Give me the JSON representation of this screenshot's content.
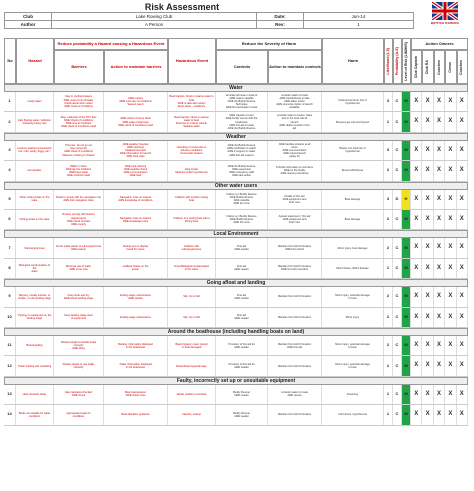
{
  "title": "Risk Assessment",
  "brand": {
    "wordmark": "BRITISH ROWING",
    "logo_icon": "union-flag-oars-icon"
  },
  "meta": {
    "club_label": "Club",
    "club_value": "Lake Rowing Club",
    "date_label": "Date:",
    "date_value": "Jun-14",
    "author_label": "Author",
    "author_value": "A Person",
    "rev_label": "Rev:",
    "rev_value": "1"
  },
  "headers": {
    "no": "No",
    "hazard": "Hazard",
    "group_prob": "Reduce probability a Hazard causing a Hazardous Event",
    "barriers": "Barriers",
    "action_barriers": "Action to maintain barriers",
    "hazardous_event": "Hazardous Event",
    "group_sev": "Reduce the Severity of Harm",
    "controls": "Controls",
    "action_controls": "Action to maintain controls",
    "harm": "Harm",
    "likelihood": "Likelihood (1-5)",
    "probability": "Probability (A-E)",
    "level": "Level of Risk (L/M/H/S)",
    "action_owners": "Action Owners",
    "owners": [
      "Club Captain",
      "Club RA",
      "Coaches",
      "Crews",
      "Coaches"
    ]
  },
  "colors": {
    "green": "#1fa447",
    "yellow": "#f2e11a",
    "red": "#c00000"
  },
  "sections": [
    {
      "title": "Water",
      "rows": [
        {
          "no": "1",
          "hazard": "cough water",
          "barriers": "Stay in confined waters\nAWE must come off water\nCheck alerts when water\nAWE check of conditions",
          "action_b": "AWE notices\nAWE summary of conditions\nSeason report",
          "event": "Boat Capsize, flood or swamp water to boat\nAWE to take alert action\nEnter water - conditions",
          "controls": "simulate all boats in boat of\nAWE rowers capable\nAWE the Buddy Rescue\nTechnique\nAWE first aid leader to boat",
          "action_c": "consider water to boats\nAWE transfer/tests to take\nAWE taken action\nAWE promotes indoor of launch\navailable",
          "harm": "Strains/cuts/ tired, risk of\nhypothermia",
          "like": "3",
          "prob": "C",
          "risk": "M",
          "level_color": "green"
        },
        {
          "no": "2",
          "hazard": "Fast flowing water / pollution\nFollowing heavy rain",
          "barriers": "Stay- sediment of the TPC flow\nAWE Check of conditions\nAWE stay at riverbank\nAWE check of conditions used",
          "action_b": "AWE check of Comp bank\nAWE Lake of warnings\nAWE check of conditions used",
          "event": "Boat Capsize, flood or swamp\nwater to boat\nExercise to moving vehicle\nSwallow water",
          "controls": "AWE Captain or tutor\nAWE buddy rescue with the\nboathouse\nAWE first aid in boats\nAWE the Buddy Rescue",
          "action_c": "consider water to boats / sides\nless in the boat well at\nlaunch\nAWE deliver results in first\naid",
          "harm": "Mesures get sick and injured",
          "like": "1",
          "prob": "C",
          "risk": "M",
          "level_color": "green"
        }
      ]
    },
    {
      "title": "Weather",
      "rows": [
        {
          "no": "3",
          "hazard": "extreme weather (excessively\nhot, cold, windy, foggy, etc.)",
          "barriers": "Thermal - do not go out\nUse correct kit\nAWE check of conditions\nMeasure of being to chased",
          "action_b": "AWE weather forecast\nAWE warnings\nUpdated forecasts\nAWE information for launch\nAWE Club rules",
          "event": "Upsetting of a boat due to\nadverse conditions\nOver/under-boaters",
          "controls": "AWE the Buddy Rescue\nAWE certificate on watch\nAWE if support on water\nAWE first aid support",
          "action_c": "AWE handles shelters at all\ntimes\nAWE communication\nAWE trained launch\nsafety kit",
          "harm": "Blows/ cut/ tired risk of\nhypothermia",
          "like": "3",
          "prob": "C",
          "risk": "M",
          "level_color": "green"
        },
        {
          "no": "4",
          "hazard": "Hot weather",
          "barriers": "AWE is it clinic\nAWE lap the inhibitors\nAWE have water\nAWE reinforce head",
          "action_b": "AWE heat warning\nAWE weather check\nAWE communication\nAWE heat",
          "event": "Heat stroke\nMeasure suffer hypothermia",
          "controls": "AWE the Buddy Rescue\nAWE supervises\nAWE emergency staff\nAWE take action",
          "action_c": "Provide information to members\nAWE on the buddy\nAWE rescue procedures",
          "harm": "Illness/ Mild illness",
          "like": "2",
          "prob": "C",
          "risk": "M",
          "level_color": "green"
        }
      ]
    },
    {
      "title": "Other water users",
      "rows": [
        {
          "no": "5",
          "hazard": "Other rowing boats on the\nLake",
          "barriers": "Rowers comply with the navigation rule\nAWE club navigation rules",
          "action_b": "Navigation rules on lookout\nAWE knowledge of conditions",
          "event": "Collision with another rowing\nboat",
          "controls": "Follow up / Buddy Rescue\nAWE Buddy Rescue\nAWE capable\nAWE the crew",
          "action_c": "Details of first aid\nAWE equipment and\nbrief crew",
          "harm": "Boat damage",
          "like": "3",
          "prob": "D",
          "risk": "H",
          "level_color": "yellow"
        },
        {
          "no": "6",
          "hazard": "Fishing boats on the Lake",
          "barriers": "Rowers comply with lookout requirements\nAWE check of boats\nAWE comply",
          "action_b": "Navigation rules on lookout\nAWE knowledge rules",
          "event": "Collision of a rowing boat with a\nfishing boat",
          "controls": "Follow up / Buddy Rescue\nAWE Buddy Rescue\nAWE the crew",
          "action_c": "Agreed equipment / first aid\nAWE equipment and\nbrief crew",
          "harm": "Boat damage",
          "like": "2",
          "prob": "C",
          "risk": "M",
          "level_color": "green"
        }
      ]
    },
    {
      "title": "Local Environment",
      "rows": [
        {
          "no": "7",
          "hazard": "Submerging trees",
          "barriers": "Crews made aware of submerged trees\nAWE lookout",
          "action_b": "Notices put on display\nboard for crews",
          "event": "Collision with\nsubmerged trees",
          "controls": "First aid\nAWE Leader",
          "action_c": "Maintain First Aid Kit location\nAWE First aid kit",
          "harm": "Minor injury, boat damage",
          "like": "2",
          "prob": "C",
          "risk": "M",
          "level_color": "green"
        },
        {
          "no": "8",
          "hazard": "Biological contamination of the\nwater",
          "barriers": "Minimise use of water\nAWE cover cuts",
          "action_b": "Leaflets/ Notice on the\nposter",
          "event": "Crew/ Biological contamination\nof the water",
          "controls": "First aid\nAWE Leader",
          "action_c": "Maintain First Aid Kit location\nAWE first aid procedure",
          "harm": "Minor illness, Weil's disease",
          "like": "1",
          "prob": "C",
          "risk": "M",
          "level_color": "green"
        }
      ]
    },
    {
      "title": "Going afloat and landing",
      "rows": [
        {
          "no": "9",
          "hazard": "Slippery, muddy surface, or\nbroken, on the landing stage",
          "barriers": "Keep clear and dry\nAWE check landing stage",
          "action_b": "landing stage maintenance\nAWE checks",
          "event": "Slip, trip or fall",
          "controls": "First aid\nAWE Leader",
          "action_c": "Maintain First Aid Kit location",
          "harm": "Minor injury, potential damage\nto boat",
          "like": "2",
          "prob": "C",
          "risk": "M",
          "level_color": "green"
        },
        {
          "no": "10",
          "hazard": "Tripping on equipment on the\nlanding stage",
          "barriers": "Keep landing stage clear\nof equipment",
          "action_b": "landing stage maintenance",
          "event": "Slip, trip or fall",
          "controls": "First aid\nAWE Leader",
          "action_c": "Maintain First Aid Kit location",
          "harm": "Minor injury",
          "like": "2",
          "prob": "C",
          "risk": "M",
          "level_color": "green"
        }
      ]
    },
    {
      "title": "Around the boathouse (including handling boats on land)",
      "rows": [
        {
          "no": "11",
          "hazard": "Boat Handling",
          "barriers": "Rowers taught to handle boats\ncorrectly\nAWE lifting",
          "action_b": "Boating, information displayed\nin the boathouse",
          "event": "Boat dropped, rower injured\nor boat damaged",
          "controls": "Provision of first aid kit\nAWE Leader",
          "action_c": "Maintain First Aid Kit location\nAWE first aid",
          "harm": "Minor injury, potential damage\nto boat",
          "like": "2",
          "prob": "C",
          "risk": "M",
          "level_color": "green"
        },
        {
          "no": "12",
          "hazard": "Trailer loading and unloading",
          "barriers": "Rowers taught to use trailer\ncorrectly",
          "action_b": "Trailer information displayed\nin the boathouse",
          "event": "Rower/boat injury/damage",
          "controls": "Provision of first aid kit\nAWE Leader",
          "action_c": "Maintain First Aid Kit location",
          "harm": "Minor injury, potential damage\nto boat",
          "like": "2",
          "prob": "C",
          "risk": "M",
          "level_color": "green"
        }
      ]
    },
    {
      "title": "Faulty, incorrectly set up or unsuitable equipment",
      "rows": [
        {
          "no": "13",
          "hazard": "Heel restraints faulty",
          "barriers": "Heel restraints checked\nAWE check",
          "action_b": "Boat maintenance\nAWE check rules",
          "event": "Rower unable to exit boat",
          "controls": "Buddy Rescue\nAWE Leader",
          "action_c": "consider water to boats\nAWE rescue",
          "harm": "Drowning",
          "like": "1",
          "prob": "C",
          "risk": "M",
          "level_color": "green"
        },
        {
          "no": "14",
          "hazard": "Boats not suitable for water\nconditions",
          "barriers": "Appropriate boats for\nconditions",
          "action_b": "Boat allocation guidance",
          "event": "Capsize, swamp",
          "controls": "Buddy Rescue\nAWE Leader",
          "action_c": "Maintain First Aid Kit location",
          "harm": "Cold shock, hypothermia",
          "like": "1",
          "prob": "C",
          "risk": "M",
          "level_color": "green"
        }
      ]
    }
  ],
  "owner_mark": "X"
}
